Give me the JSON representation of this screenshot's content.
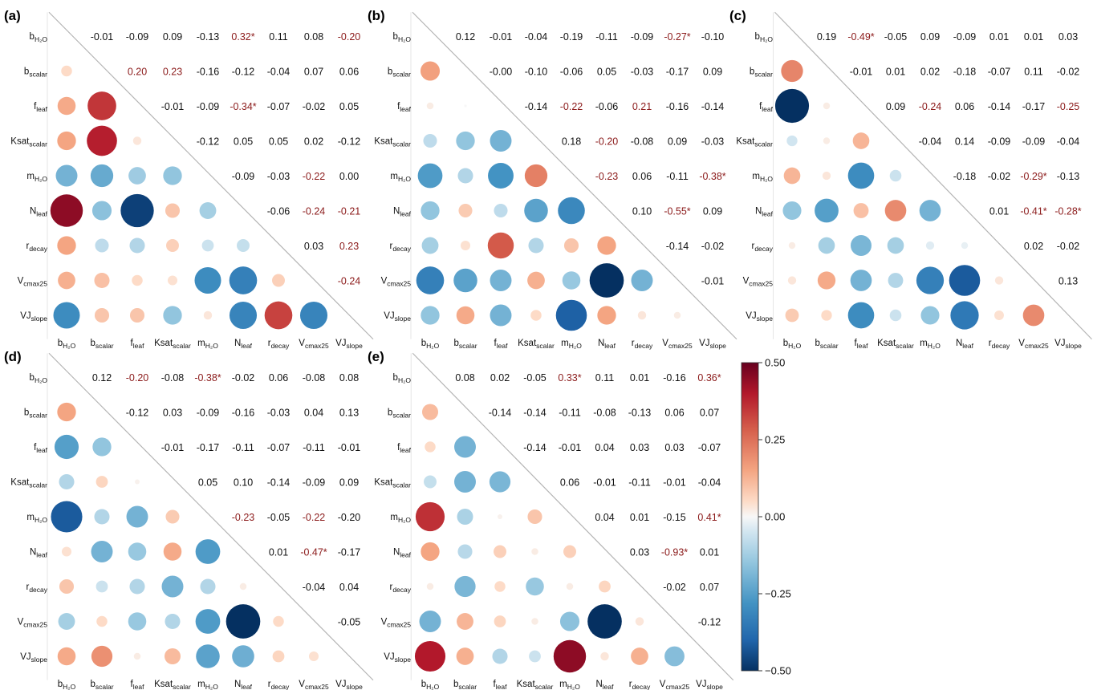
{
  "chart_data": {
    "type": "correlation-matrix",
    "variables": [
      {
        "base": "b",
        "sub": "H2O",
        "subscript_digits": true
      },
      {
        "base": "b",
        "sub": "scalar"
      },
      {
        "base": "f",
        "sub": "leaf"
      },
      {
        "base": "Ksat",
        "sub": "scalar"
      },
      {
        "base": "m",
        "sub": "H2O",
        "subscript_digits": true
      },
      {
        "base": "N",
        "sub": "leaf"
      },
      {
        "base": "r",
        "sub": "decay"
      },
      {
        "base": "V",
        "sub": "cmax25"
      },
      {
        "base": "VJ",
        "sub": "slope"
      }
    ],
    "significance_marker": "*",
    "colorbar": {
      "min": -0.5,
      "max": 0.5,
      "ticks": [
        "0.50",
        "0.25",
        "0.00",
        "−0.25",
        "−0.50"
      ],
      "tick_values": [
        0.5,
        0.25,
        0,
        -0.25,
        -0.5
      ]
    },
    "colors": {
      "strong_positive": "#67001f",
      "positive": "#d6604d",
      "neutral": "#f7f7f7",
      "negative": "#4393c3",
      "strong_negative": "#053061",
      "highlight_text": "#8b1a1a",
      "normal_text": "#111111",
      "diagonal": "#b4b4b4"
    },
    "panels": [
      {
        "label": "(a)",
        "values": [
          [
            "-0.01",
            "-0.09",
            "0.09",
            "-0.13",
            "0.32*",
            "0.11",
            "0.08",
            "-0.20"
          ],
          [
            "0.20",
            "0.23",
            "-0.16",
            "-0.12",
            "-0.04",
            "0.07",
            "0.06"
          ],
          [
            "-0.01",
            "-0.09",
            "-0.34*",
            "-0.07",
            "-0.02",
            "0.05"
          ],
          [
            "-0.12",
            "0.05",
            "0.05",
            "0.02",
            "-0.12"
          ],
          [
            "-0.09",
            "-0.03",
            "-0.22",
            "0.00"
          ],
          [
            "-0.06",
            "-0.24",
            "-0.21"
          ],
          [
            "0.03",
            "0.23"
          ],
          [
            "-0.24"
          ]
        ],
        "highlighted": [
          [
            false,
            false,
            false,
            false,
            true,
            false,
            false,
            true
          ],
          [
            true,
            true,
            false,
            false,
            false,
            false,
            false
          ],
          [
            false,
            false,
            true,
            false,
            false,
            false
          ],
          [
            false,
            false,
            false,
            false,
            false
          ],
          [
            false,
            false,
            true,
            false
          ],
          [
            false,
            true,
            true
          ],
          [
            false,
            true
          ],
          [
            true
          ]
        ],
        "lower_circles": [
          [
            0.05
          ],
          [
            0.14,
            0.35
          ],
          [
            0.15,
            0.39,
            0.03
          ],
          [
            -0.2,
            -0.22,
            -0.13,
            -0.15
          ],
          [
            0.45,
            -0.16,
            -0.47,
            0.09,
            -0.12
          ],
          [
            0.15,
            -0.08,
            -0.1,
            0.07,
            -0.06,
            -0.07
          ],
          [
            0.13,
            0.1,
            0.05,
            0.04,
            -0.3,
            -0.33,
            0.07
          ],
          [
            -0.3,
            0.09,
            0.09,
            -0.15,
            0.03,
            -0.32,
            0.33,
            -0.32
          ]
        ]
      },
      {
        "label": "(b)",
        "values": [
          [
            "0.12",
            "-0.01",
            "-0.04",
            "-0.19",
            "-0.11",
            "-0.09",
            "-0.27*",
            "-0.10"
          ],
          [
            "-0.00",
            "-0.10",
            "-0.06",
            "0.05",
            "-0.03",
            "-0.17",
            "0.09"
          ],
          [
            "-0.14",
            "-0.22",
            "-0.06",
            "0.21",
            "-0.16",
            "-0.14"
          ],
          [
            "0.18",
            "-0.20",
            "-0.08",
            "0.09",
            "-0.03"
          ],
          [
            "-0.23",
            "0.06",
            "-0.11",
            "-0.38*"
          ],
          [
            "0.10",
            "-0.55*",
            "0.09"
          ],
          [
            "-0.14",
            "-0.02"
          ],
          [
            "-0.01"
          ]
        ],
        "highlighted": [
          [
            false,
            false,
            false,
            false,
            false,
            false,
            true,
            false
          ],
          [
            false,
            false,
            false,
            false,
            false,
            false,
            false
          ],
          [
            false,
            true,
            false,
            true,
            false,
            false
          ],
          [
            false,
            true,
            false,
            false,
            false
          ],
          [
            true,
            false,
            false,
            true
          ],
          [
            false,
            true,
            false
          ],
          [
            false,
            false
          ],
          [
            false
          ]
        ],
        "lower_circles": [
          [
            0.16
          ],
          [
            0.02,
            0.0
          ],
          [
            -0.08,
            -0.15,
            -0.2
          ],
          [
            -0.26,
            -0.1,
            -0.28,
            0.22
          ],
          [
            -0.15,
            0.08,
            -0.08,
            -0.24,
            -0.31
          ],
          [
            -0.12,
            0.04,
            0.29,
            -0.1,
            0.09,
            0.15
          ],
          [
            -0.33,
            -0.24,
            -0.2,
            0.13,
            -0.14,
            -0.5,
            -0.2
          ],
          [
            -0.15,
            0.14,
            -0.2,
            0.05,
            -0.41,
            0.15,
            0.03,
            0.02
          ]
        ]
      },
      {
        "label": "(c)",
        "values": [
          [
            "0.19",
            "-0.49*",
            "-0.05",
            "0.09",
            "-0.09",
            "0.01",
            "0.01",
            "0.03"
          ],
          [
            "-0.01",
            "0.01",
            "0.02",
            "-0.18",
            "-0.07",
            "0.11",
            "-0.02"
          ],
          [
            "0.09",
            "-0.24",
            "0.06",
            "-0.14",
            "-0.17",
            "-0.25"
          ],
          [
            "-0.04",
            "0.14",
            "-0.09",
            "-0.09",
            "-0.04"
          ],
          [
            "-0.18",
            "-0.02",
            "-0.29*",
            "-0.13"
          ],
          [
            "0.01",
            "-0.41*",
            "-0.28*"
          ],
          [
            "0.02",
            "-0.02"
          ],
          [
            "0.13"
          ]
        ],
        "highlighted": [
          [
            false,
            true,
            false,
            false,
            false,
            false,
            false,
            false
          ],
          [
            false,
            false,
            false,
            false,
            false,
            false,
            false
          ],
          [
            false,
            true,
            false,
            false,
            false,
            true
          ],
          [
            false,
            false,
            false,
            false,
            false
          ],
          [
            false,
            false,
            true,
            false
          ],
          [
            false,
            true,
            true
          ],
          [
            false,
            false
          ],
          [
            false
          ]
        ],
        "lower_circles": [
          [
            0.21
          ],
          [
            -0.5,
            0.02
          ],
          [
            -0.05,
            0.02,
            0.12
          ],
          [
            0.12,
            0.03,
            -0.3,
            -0.06
          ],
          [
            -0.15,
            -0.25,
            0.1,
            0.2,
            -0.2
          ],
          [
            0.02,
            -0.12,
            -0.19,
            -0.12,
            -0.03,
            -0.02
          ],
          [
            0.03,
            0.14,
            -0.2,
            -0.1,
            -0.33,
            -0.42,
            0.03
          ],
          [
            0.08,
            0.05,
            -0.3,
            -0.06,
            -0.15,
            -0.35,
            0.04,
            0.2
          ]
        ]
      },
      {
        "label": "(d)",
        "values": [
          [
            "0.12",
            "-0.20",
            "-0.08",
            "-0.38*",
            "-0.02",
            "0.06",
            "-0.08",
            "0.08"
          ],
          [
            "-0.12",
            "0.03",
            "-0.09",
            "-0.16",
            "-0.03",
            "0.04",
            "0.13"
          ],
          [
            "-0.01",
            "-0.17",
            "-0.11",
            "-0.07",
            "-0.11",
            "-0.01"
          ],
          [
            "0.05",
            "0.10",
            "-0.14",
            "-0.09",
            "0.09"
          ],
          [
            "-0.23",
            "-0.05",
            "-0.22",
            "-0.20"
          ],
          [
            "0.01",
            "-0.47*",
            "-0.17"
          ],
          [
            "-0.04",
            "0.04"
          ],
          [
            "-0.05"
          ]
        ],
        "highlighted": [
          [
            false,
            true,
            false,
            true,
            false,
            false,
            false,
            false
          ],
          [
            false,
            false,
            false,
            false,
            false,
            false,
            false
          ],
          [
            false,
            false,
            false,
            false,
            false,
            false
          ],
          [
            false,
            false,
            false,
            false,
            false
          ],
          [
            true,
            false,
            true,
            false
          ],
          [
            false,
            true,
            false
          ],
          [
            false,
            false
          ],
          [
            false
          ]
        ],
        "lower_circles": [
          [
            0.15
          ],
          [
            -0.25,
            -0.15
          ],
          [
            -0.1,
            0.06,
            0.01
          ],
          [
            -0.42,
            -0.1,
            -0.2,
            0.08
          ],
          [
            0.04,
            -0.2,
            -0.14,
            0.14,
            -0.26
          ],
          [
            0.09,
            -0.06,
            -0.1,
            -0.2,
            -0.1,
            0.02
          ],
          [
            -0.12,
            0.05,
            -0.14,
            -0.1,
            -0.26,
            -0.5,
            0.05
          ],
          [
            0.14,
            0.19,
            0.02,
            0.11,
            -0.24,
            -0.21,
            0.06,
            0.04
          ]
        ]
      },
      {
        "label": "(e)",
        "values": [
          [
            "0.08",
            "0.02",
            "-0.05",
            "0.33*",
            "0.11",
            "0.01",
            "-0.16",
            "0.36*"
          ],
          [
            "-0.14",
            "-0.14",
            "-0.11",
            "-0.08",
            "-0.13",
            "0.06",
            "0.07"
          ],
          [
            "-0.14",
            "-0.01",
            "0.04",
            "0.03",
            "0.03",
            "-0.07"
          ],
          [
            "0.06",
            "-0.01",
            "-0.11",
            "-0.01",
            "-0.04"
          ],
          [
            "0.04",
            "0.01",
            "-0.15",
            "0.41*"
          ],
          [
            "0.03",
            "-0.93*",
            "0.01"
          ],
          [
            "-0.02",
            "0.07"
          ],
          [
            "-0.12"
          ]
        ],
        "highlighted": [
          [
            false,
            false,
            false,
            true,
            false,
            false,
            false,
            true
          ],
          [
            false,
            false,
            false,
            false,
            false,
            false,
            false
          ],
          [
            false,
            false,
            false,
            false,
            false,
            false
          ],
          [
            false,
            false,
            false,
            false,
            false
          ],
          [
            false,
            false,
            false,
            true
          ],
          [
            false,
            true,
            false
          ],
          [
            false,
            false
          ],
          [
            false
          ]
        ],
        "lower_circles": [
          [
            0.11
          ],
          [
            0.05,
            -0.2
          ],
          [
            -0.07,
            -0.2,
            -0.19
          ],
          [
            0.36,
            -0.11,
            0.01,
            0.09
          ],
          [
            0.15,
            -0.09,
            0.07,
            0.02,
            0.07
          ],
          [
            0.02,
            -0.19,
            0.05,
            -0.14,
            0.02,
            0.06
          ],
          [
            -0.2,
            0.12,
            0.06,
            0.02,
            -0.16,
            -0.5,
            0.03
          ],
          [
            0.4,
            0.13,
            -0.1,
            -0.06,
            0.45,
            0.03,
            0.13,
            -0.17
          ]
        ]
      }
    ]
  }
}
